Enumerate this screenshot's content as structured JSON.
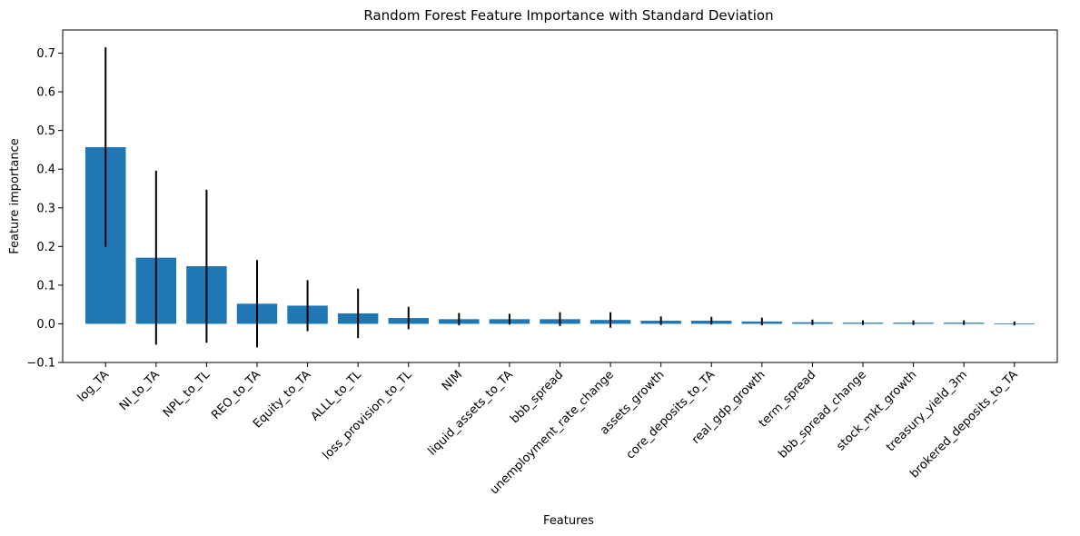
{
  "chart_data": {
    "type": "bar",
    "title": "Random Forest Feature Importance with Standard Deviation",
    "xlabel": "Features",
    "ylabel": "Feature importance",
    "ylim": [
      -0.1,
      0.76
    ],
    "yticks": [
      "−0.1",
      "0.0",
      "0.1",
      "0.2",
      "0.3",
      "0.4",
      "0.5",
      "0.6",
      "0.7"
    ],
    "ytick_values": [
      -0.1,
      0.0,
      0.1,
      0.2,
      0.3,
      0.4,
      0.5,
      0.6,
      0.7
    ],
    "grid": false,
    "bar_color": "#1f77b4",
    "error_color": "#000000",
    "categories": [
      "log_TA",
      "NI_to_TA",
      "NPL_to_TL",
      "REO_to_TA",
      "Equity_to_TA",
      "ALLL_to_TL",
      "loss_provision_to_TL",
      "NIM",
      "liquid_assets_to_TA",
      "bbb_spread",
      "unemployment_rate_change",
      "assets_growth",
      "core_deposits_to_TA",
      "real_gdp_growth",
      "term_spread",
      "bbb_spread_change",
      "stock_mkt_growth",
      "treasury_yield_3m",
      "brokered_deposits_to_TA"
    ],
    "values": [
      0.457,
      0.171,
      0.149,
      0.052,
      0.047,
      0.027,
      0.015,
      0.012,
      0.012,
      0.012,
      0.01,
      0.008,
      0.008,
      0.006,
      0.004,
      0.003,
      0.003,
      0.003,
      0.001
    ],
    "errors": [
      0.258,
      0.225,
      0.198,
      0.113,
      0.066,
      0.064,
      0.029,
      0.016,
      0.014,
      0.018,
      0.02,
      0.011,
      0.01,
      0.01,
      0.007,
      0.006,
      0.006,
      0.006,
      0.005
    ]
  }
}
